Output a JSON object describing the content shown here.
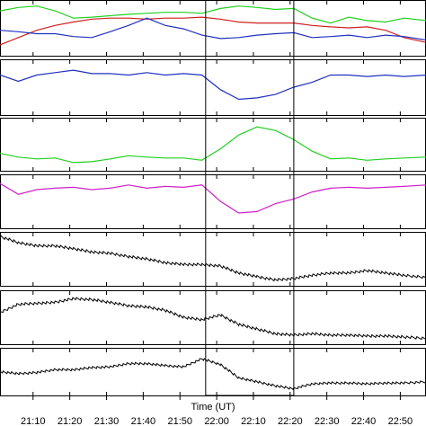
{
  "chart_data": {
    "type": "line",
    "xlabel": "Time (UT)",
    "x_ticks": [
      "21:10",
      "21:20",
      "21:30",
      "21:40",
      "21:50",
      "22:00",
      "22:10",
      "22:20",
      "22:30",
      "22:40",
      "22:50"
    ],
    "x_tick_minutes": [
      1270,
      1280,
      1290,
      1300,
      1310,
      1320,
      1330,
      1340,
      1350,
      1360,
      1370
    ],
    "xlim_minutes": [
      1261,
      1377
    ],
    "highlight_window_minutes": [
      1317,
      1341
    ],
    "grid": false,
    "legend": "none",
    "panels": [
      {
        "series": [
          {
            "color": "#20d020",
            "x": [
              1261,
              1266,
              1271,
              1276,
              1281,
              1286,
              1291,
              1296,
              1301,
              1306,
              1311,
              1316,
              1321,
              1326,
              1331,
              1336,
              1341,
              1346,
              1351,
              1356,
              1361,
              1366,
              1371,
              1377
            ],
            "y": [
              0.85,
              0.92,
              0.95,
              0.85,
              0.7,
              0.72,
              0.75,
              0.78,
              0.8,
              0.82,
              0.82,
              0.8,
              0.9,
              0.95,
              0.92,
              0.88,
              0.9,
              0.7,
              0.6,
              0.72,
              0.65,
              0.62,
              0.7,
              0.65
            ]
          },
          {
            "color": "#d02020",
            "x": [
              1261,
              1266,
              1271,
              1276,
              1281,
              1286,
              1291,
              1296,
              1301,
              1306,
              1311,
              1316,
              1321,
              1326,
              1331,
              1336,
              1341,
              1346,
              1351,
              1356,
              1361,
              1366,
              1371,
              1377
            ],
            "y": [
              0.15,
              0.3,
              0.45,
              0.55,
              0.62,
              0.68,
              0.7,
              0.7,
              0.68,
              0.7,
              0.7,
              0.72,
              0.68,
              0.62,
              0.6,
              0.6,
              0.6,
              0.55,
              0.52,
              0.5,
              0.52,
              0.45,
              0.3,
              0.2
            ]
          },
          {
            "color": "#2030c0",
            "x": [
              1261,
              1266,
              1271,
              1276,
              1281,
              1286,
              1291,
              1296,
              1301,
              1306,
              1311,
              1316,
              1321,
              1326,
              1331,
              1336,
              1341,
              1346,
              1351,
              1356,
              1361,
              1366,
              1371,
              1377
            ],
            "y": [
              0.45,
              0.42,
              0.38,
              0.38,
              0.32,
              0.3,
              0.42,
              0.55,
              0.7,
              0.55,
              0.48,
              0.35,
              0.28,
              0.3,
              0.35,
              0.38,
              0.4,
              0.3,
              0.32,
              0.35,
              0.3,
              0.35,
              0.32,
              0.25
            ]
          }
        ]
      },
      {
        "series": [
          {
            "color": "#2030c0",
            "x": [
              1261,
              1266,
              1271,
              1276,
              1281,
              1286,
              1291,
              1296,
              1301,
              1306,
              1311,
              1316,
              1321,
              1326,
              1331,
              1336,
              1341,
              1346,
              1351,
              1356,
              1361,
              1366,
              1371,
              1377
            ],
            "y": [
              0.75,
              0.62,
              0.75,
              0.8,
              0.85,
              0.78,
              0.78,
              0.75,
              0.8,
              0.75,
              0.78,
              0.75,
              0.45,
              0.25,
              0.28,
              0.35,
              0.5,
              0.6,
              0.75,
              0.75,
              0.72,
              0.75,
              0.72,
              0.75
            ]
          }
        ]
      },
      {
        "series": [
          {
            "color": "#20d020",
            "x": [
              1261,
              1266,
              1271,
              1276,
              1281,
              1286,
              1291,
              1296,
              1301,
              1306,
              1311,
              1316,
              1321,
              1326,
              1331,
              1336,
              1341,
              1346,
              1351,
              1356,
              1361,
              1366,
              1371,
              1377
            ],
            "y": [
              0.3,
              0.22,
              0.18,
              0.2,
              0.1,
              0.12,
              0.18,
              0.25,
              0.22,
              0.2,
              0.2,
              0.15,
              0.4,
              0.7,
              0.88,
              0.8,
              0.6,
              0.35,
              0.18,
              0.2,
              0.15,
              0.18,
              0.2,
              0.22
            ]
          }
        ]
      },
      {
        "series": [
          {
            "color": "#d020c8",
            "x": [
              1261,
              1266,
              1271,
              1276,
              1281,
              1286,
              1291,
              1296,
              1301,
              1306,
              1311,
              1316,
              1321,
              1326,
              1331,
              1336,
              1341,
              1346,
              1351,
              1356,
              1361,
              1366,
              1371,
              1377
            ],
            "y": [
              0.88,
              0.65,
              0.75,
              0.78,
              0.8,
              0.75,
              0.78,
              0.85,
              0.78,
              0.82,
              0.8,
              0.85,
              0.5,
              0.25,
              0.28,
              0.45,
              0.55,
              0.7,
              0.78,
              0.8,
              0.78,
              0.8,
              0.82,
              0.85
            ]
          }
        ]
      },
      {
        "series": [
          {
            "color": "#000000",
            "x": [
              1261,
              1266,
              1271,
              1276,
              1281,
              1286,
              1291,
              1296,
              1301,
              1306,
              1311,
              1316,
              1321,
              1326,
              1331,
              1336,
              1341,
              1346,
              1351,
              1356,
              1361,
              1366,
              1371,
              1377
            ],
            "y": [
              0.98,
              0.85,
              0.78,
              0.78,
              0.72,
              0.65,
              0.62,
              0.55,
              0.5,
              0.42,
              0.38,
              0.38,
              0.35,
              0.2,
              0.12,
              0.05,
              0.08,
              0.15,
              0.2,
              0.2,
              0.25,
              0.2,
              0.15,
              0.1
            ]
          }
        ]
      },
      {
        "series": [
          {
            "color": "#000000",
            "x": [
              1261,
              1266,
              1271,
              1276,
              1281,
              1286,
              1291,
              1296,
              1301,
              1306,
              1311,
              1316,
              1321,
              1326,
              1331,
              1336,
              1341,
              1346,
              1351,
              1356,
              1361,
              1366,
              1371,
              1377
            ],
            "y": [
              0.6,
              0.78,
              0.8,
              0.82,
              0.9,
              0.88,
              0.82,
              0.75,
              0.72,
              0.65,
              0.5,
              0.45,
              0.55,
              0.35,
              0.25,
              0.15,
              0.12,
              0.15,
              0.12,
              0.12,
              0.1,
              0.1,
              0.08,
              0.05
            ]
          }
        ]
      },
      {
        "series": [
          {
            "color": "#000000",
            "x": [
              1261,
              1266,
              1271,
              1276,
              1281,
              1286,
              1291,
              1296,
              1301,
              1306,
              1311,
              1316,
              1321,
              1326,
              1331,
              1336,
              1341,
              1346,
              1351,
              1356,
              1361,
              1366,
              1371,
              1377
            ],
            "y": [
              0.5,
              0.45,
              0.48,
              0.55,
              0.55,
              0.6,
              0.62,
              0.7,
              0.7,
              0.65,
              0.62,
              0.82,
              0.68,
              0.35,
              0.25,
              0.15,
              0.08,
              0.2,
              0.22,
              0.22,
              0.2,
              0.22,
              0.22,
              0.25
            ]
          }
        ]
      }
    ]
  }
}
